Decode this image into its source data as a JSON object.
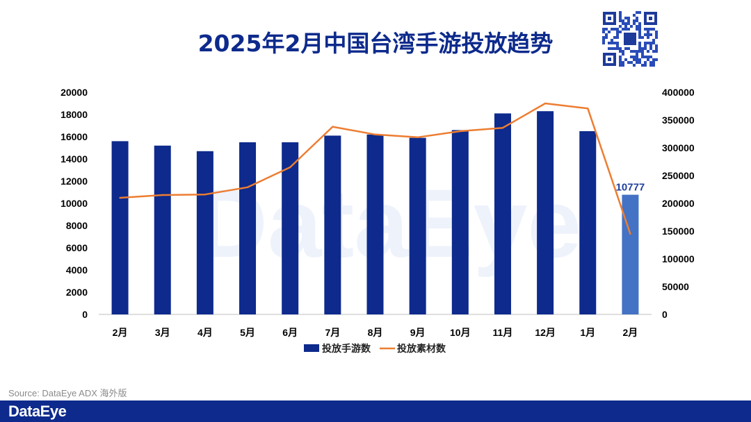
{
  "title": "2025年2月中国台湾手游投放趋势",
  "source": "Source: DataEye ADX 海外版",
  "brand": {
    "logo_text": "DataEye",
    "watermark_text": "DataEye",
    "primary_color": "#0d2a8c",
    "highlight_color": "#4472c4",
    "line_color": "#ed7d31"
  },
  "chart_data": {
    "type": "bar",
    "categories": [
      "2月",
      "3月",
      "4月",
      "5月",
      "6月",
      "7月",
      "8月",
      "9月",
      "10月",
      "11月",
      "12月",
      "1月",
      "2月"
    ],
    "series": [
      {
        "name": "投放手游数",
        "type": "bar",
        "axis": "left",
        "values": [
          15600,
          15200,
          14700,
          15500,
          15500,
          16100,
          16200,
          15900,
          16600,
          18100,
          18300,
          16500,
          10777
        ]
      },
      {
        "name": "投放素材数",
        "type": "line",
        "axis": "right",
        "values": [
          210000,
          215000,
          216000,
          229000,
          265000,
          338000,
          324000,
          319000,
          330000,
          336000,
          380000,
          371000,
          145000
        ]
      }
    ],
    "y_left": {
      "min": 0,
      "max": 20000,
      "ticks": [
        "0",
        "2000",
        "4000",
        "6000",
        "8000",
        "10000",
        "12000",
        "14000",
        "16000",
        "18000",
        "20000"
      ]
    },
    "y_right": {
      "min": 0,
      "max": 400000,
      "ticks": [
        "0",
        "50000",
        "100000",
        "150000",
        "200000",
        "250000",
        "300000",
        "350000",
        "400000"
      ]
    },
    "highlight_index": 12,
    "data_labels": [
      {
        "index": 12,
        "text": "10777"
      }
    ],
    "legend_position": "bottom",
    "grid": false
  }
}
